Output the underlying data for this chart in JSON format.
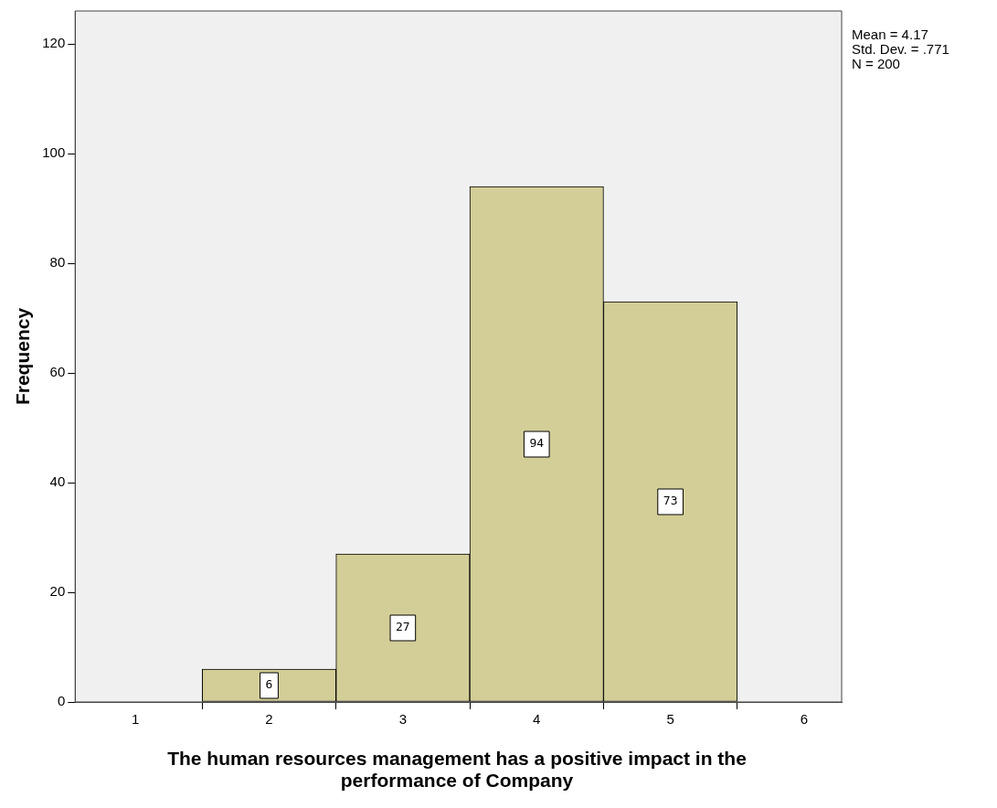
{
  "chart_data": {
    "type": "histogram",
    "xlabel": "The human resources management has a positive impact in the performance of Company",
    "ylabel": "Frequency",
    "bins": [
      1.5,
      2.5,
      3.5,
      4.5,
      5.5
    ],
    "values": [
      6,
      27,
      94,
      73
    ],
    "color": "#d3ce97",
    "xlim": [
      0.55,
      6.28
    ],
    "xticks": [
      1,
      2,
      3,
      4,
      5,
      6
    ],
    "ylim": [
      0,
      126
    ],
    "yticks": [
      0,
      20,
      40,
      60,
      80,
      100,
      120
    ],
    "grid": false,
    "legend": false,
    "data_labels": true,
    "annotations": [
      "Mean = 4.17",
      "Std. Dev. = .771",
      "N = 200"
    ]
  }
}
